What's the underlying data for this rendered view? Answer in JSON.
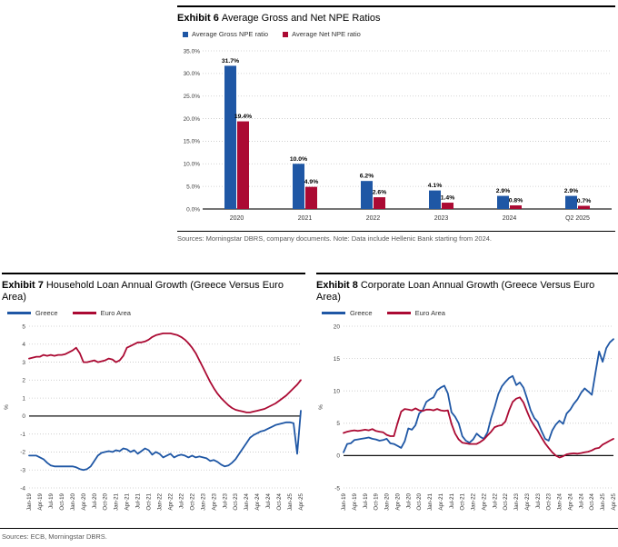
{
  "footer_source": "Sources: ECB, Morningstar DBRS.",
  "colors": {
    "blue": "#1f57a5",
    "red": "#ab0a33",
    "grid": "#c8c8c8",
    "axis": "#222222",
    "tick_text": "#404040"
  },
  "chart_data": [
    {
      "id": "npe-ratios",
      "type": "bar",
      "title_bold": "Exhibit 6",
      "title_rest": "Average Gross and Net NPE Ratios",
      "source": "Sources: Morningstar DBRS, company documents. Note: Data include Hellenic Bank starting from 2024.",
      "categories": [
        "2020",
        "2021",
        "2022",
        "2023",
        "2024",
        "Q2 2025"
      ],
      "series": [
        {
          "name": "Average Gross NPE ratio",
          "color": "#1f57a5",
          "values": [
            31.7,
            10.0,
            6.2,
            4.1,
            2.9,
            2.9
          ]
        },
        {
          "name": "Average Net NPE ratio",
          "color": "#ab0a33",
          "values": [
            19.4,
            4.9,
            2.6,
            1.4,
            0.8,
            0.7
          ]
        }
      ],
      "ylim": [
        0,
        35
      ],
      "ytick_values": [
        0,
        5,
        10,
        15,
        20,
        25,
        30,
        35
      ],
      "ytick_labels": [
        "0.0%",
        "5.0%",
        "10.0%",
        "15.0%",
        "20.0%",
        "25.0%",
        "30.0%",
        "35.0%"
      ],
      "grid": "dotted",
      "legend_position": "top-left",
      "data_labels": true
    },
    {
      "id": "household-loan-growth",
      "type": "line",
      "title_bold": "Exhibit 7",
      "title_rest": "Household Loan Annual Growth (Greece Versus Euro Area)",
      "ylabel": "%",
      "ylim": [
        -4,
        5
      ],
      "yticks": [
        5,
        4,
        3,
        2,
        1,
        0,
        -1,
        -2,
        -3,
        -4
      ],
      "xticks": [
        "Jan-19",
        "Apr-19",
        "Jul-19",
        "Oct-19",
        "Jan-20",
        "Apr-20",
        "Jul-20",
        "Oct-20",
        "Jan-21",
        "Apr-21",
        "Jul-21",
        "Oct-21",
        "Jan-22",
        "Apr-22",
        "Jul-22",
        "Oct-22",
        "Jan-23",
        "Apr-23",
        "Jul-23",
        "Oct-23",
        "Jan-24",
        "Apr-24",
        "Jul-24",
        "Oct-24",
        "Jan-25",
        "Apr-25"
      ],
      "xtick_every_n_points": 3,
      "grid": "dotted",
      "legend_position": "top-left",
      "series": [
        {
          "name": "Greece",
          "color": "#1f57a5",
          "values": [
            -2.2,
            -2.2,
            -2.2,
            -2.3,
            -2.4,
            -2.6,
            -2.75,
            -2.8,
            -2.8,
            -2.8,
            -2.8,
            -2.8,
            -2.8,
            -2.85,
            -2.95,
            -3.0,
            -2.95,
            -2.8,
            -2.5,
            -2.2,
            -2.05,
            -2.0,
            -1.95,
            -2.0,
            -1.9,
            -1.95,
            -1.8,
            -1.85,
            -2.0,
            -1.9,
            -2.1,
            -1.95,
            -1.8,
            -1.9,
            -2.15,
            -2.0,
            -2.1,
            -2.3,
            -2.2,
            -2.1,
            -2.3,
            -2.2,
            -2.15,
            -2.2,
            -2.3,
            -2.2,
            -2.3,
            -2.25,
            -2.3,
            -2.35,
            -2.5,
            -2.45,
            -2.55,
            -2.7,
            -2.8,
            -2.75,
            -2.6,
            -2.4,
            -2.1,
            -1.8,
            -1.5,
            -1.2,
            -1.05,
            -0.95,
            -0.85,
            -0.8,
            -0.7,
            -0.6,
            -0.5,
            -0.45,
            -0.4,
            -0.35,
            -0.35,
            -0.4,
            -2.1,
            0.3
          ]
        },
        {
          "name": "Euro Area",
          "color": "#ab0a33",
          "values": [
            3.2,
            3.25,
            3.3,
            3.3,
            3.4,
            3.35,
            3.4,
            3.35,
            3.4,
            3.4,
            3.45,
            3.55,
            3.65,
            3.8,
            3.5,
            3.0,
            3.0,
            3.05,
            3.1,
            3.0,
            3.05,
            3.1,
            3.2,
            3.15,
            3.0,
            3.1,
            3.35,
            3.8,
            3.9,
            4.0,
            4.1,
            4.1,
            4.15,
            4.25,
            4.4,
            4.5,
            4.55,
            4.6,
            4.6,
            4.6,
            4.55,
            4.5,
            4.4,
            4.25,
            4.05,
            3.8,
            3.5,
            3.1,
            2.7,
            2.3,
            1.9,
            1.55,
            1.25,
            1.0,
            0.8,
            0.6,
            0.45,
            0.35,
            0.3,
            0.25,
            0.2,
            0.2,
            0.25,
            0.3,
            0.35,
            0.4,
            0.5,
            0.6,
            0.7,
            0.85,
            1.0,
            1.15,
            1.35,
            1.55,
            1.75,
            2.0
          ]
        }
      ]
    },
    {
      "id": "corporate-loan-growth",
      "type": "line",
      "title_bold": "Exhibit 8",
      "title_rest": "Corporate Loan Annual Growth (Greece Versus Euro Area)",
      "ylabel": "%",
      "ylim": [
        -5,
        20
      ],
      "yticks": [
        20,
        15,
        10,
        5,
        0,
        -5
      ],
      "xticks": [
        "Jan-19",
        "Apr-19",
        "Jul-19",
        "Oct-19",
        "Jan-20",
        "Apr-20",
        "Jul-20",
        "Oct-20",
        "Jan-21",
        "Apr-21",
        "Jul-21",
        "Oct-21",
        "Jan-22",
        "Apr-22",
        "Jul-22",
        "Oct-22",
        "Jan-23",
        "Apr-23",
        "Jul-23",
        "Oct-23",
        "Jan-24",
        "Apr-24",
        "Jul-24",
        "Oct-24",
        "Jan-25",
        "Apr-25"
      ],
      "xtick_every_n_points": 3,
      "grid": "dotted",
      "legend_position": "top-left",
      "series": [
        {
          "name": "Greece",
          "color": "#1f57a5",
          "values": [
            0.5,
            1.8,
            1.9,
            2.4,
            2.5,
            2.6,
            2.7,
            2.8,
            2.6,
            2.5,
            2.3,
            2.4,
            2.6,
            1.9,
            1.8,
            1.5,
            1.2,
            2.2,
            4.2,
            4.0,
            4.7,
            6.5,
            7.0,
            8.3,
            8.7,
            9.0,
            10.1,
            10.5,
            10.8,
            9.6,
            6.7,
            6.0,
            5.0,
            3.0,
            2.3,
            2.0,
            2.5,
            3.4,
            2.9,
            2.6,
            3.6,
            5.8,
            7.5,
            9.5,
            10.7,
            11.4,
            12.0,
            12.3,
            10.9,
            11.3,
            10.5,
            8.8,
            7.0,
            5.8,
            5.2,
            3.8,
            2.6,
            2.3,
            3.9,
            4.8,
            5.4,
            4.9,
            6.5,
            7.1,
            8.0,
            8.7,
            9.7,
            10.4,
            9.9,
            9.4,
            12.8,
            16.1,
            14.5,
            16.6,
            17.5,
            18.0
          ]
        },
        {
          "name": "Euro Area",
          "color": "#ab0a33",
          "values": [
            3.5,
            3.7,
            3.8,
            3.9,
            3.8,
            3.9,
            4.0,
            3.9,
            4.1,
            3.8,
            3.7,
            3.6,
            3.2,
            3.0,
            3.0,
            5.0,
            6.8,
            7.2,
            7.1,
            7.0,
            7.3,
            7.0,
            6.9,
            7.1,
            7.1,
            7.0,
            7.2,
            7.0,
            6.9,
            7.0,
            4.9,
            3.4,
            2.5,
            2.0,
            1.9,
            1.8,
            1.8,
            1.8,
            2.1,
            2.5,
            3.1,
            3.7,
            4.4,
            4.6,
            4.7,
            5.3,
            7.0,
            8.3,
            8.8,
            9.0,
            8.2,
            6.8,
            5.5,
            4.6,
            3.8,
            2.8,
            1.9,
            1.2,
            0.5,
            0.0,
            -0.3,
            -0.1,
            0.2,
            0.3,
            0.35,
            0.3,
            0.4,
            0.5,
            0.6,
            0.8,
            1.1,
            1.2,
            1.7,
            2.0,
            2.3,
            2.6
          ]
        }
      ]
    }
  ]
}
